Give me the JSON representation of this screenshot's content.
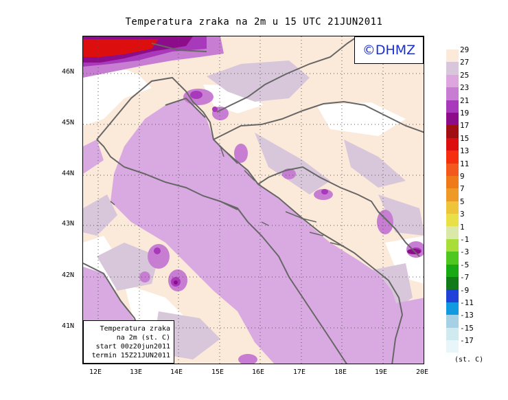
{
  "title": "Temperatura zraka na 2m u 15 UTC 21JUN2011",
  "logo_text": "©DHMZ",
  "info_box": {
    "line1": "Temperatura zraka",
    "line2": "na 2m (st. C)",
    "line3": "start 00z20jun2011",
    "line4": "termin 15Z21JUN2011"
  },
  "x_ticks": [
    "12E",
    "13E",
    "14E",
    "15E",
    "16E",
    "17E",
    "18E",
    "19E",
    "20E"
  ],
  "y_ticks": [
    "46N",
    "45N",
    "44N",
    "43N",
    "42N",
    "41N"
  ],
  "legend": {
    "unit": "(st. C)",
    "labels": [
      "29",
      "27",
      "25",
      "23",
      "21",
      "19",
      "17",
      "15",
      "13",
      "11",
      "9",
      "7",
      "5",
      "3",
      "1",
      "-1",
      "-3",
      "-5",
      "-7",
      "-9",
      "-11",
      "-13",
      "-15",
      "-17"
    ],
    "colors": [
      "#fbe9d9",
      "#d8c6da",
      "#dea6de",
      "#c77ed2",
      "#a839ba",
      "#8c0c8a",
      "#a00f12",
      "#dd0e0e",
      "#f42e0e",
      "#f3581c",
      "#f07a1a",
      "#ee9a26",
      "#edc43a",
      "#e9df47",
      "#dae9a8",
      "#a9dd3a",
      "#4ec821",
      "#19a914",
      "#137a1a",
      "#2241d8",
      "#119ae0",
      "#a6d1e4",
      "#d1eaef",
      "#e8f6f9"
    ]
  },
  "colors": {
    "sea": "#d9a9e1",
    "land_warm": "#fbe9d9",
    "land_grey": "#d8c6da",
    "land_hot": "#c77ed2",
    "very_hot": "#a839ba",
    "extreme": "#8c0c8a",
    "extreme_red": "#dd0e0e",
    "border": "#666666"
  }
}
